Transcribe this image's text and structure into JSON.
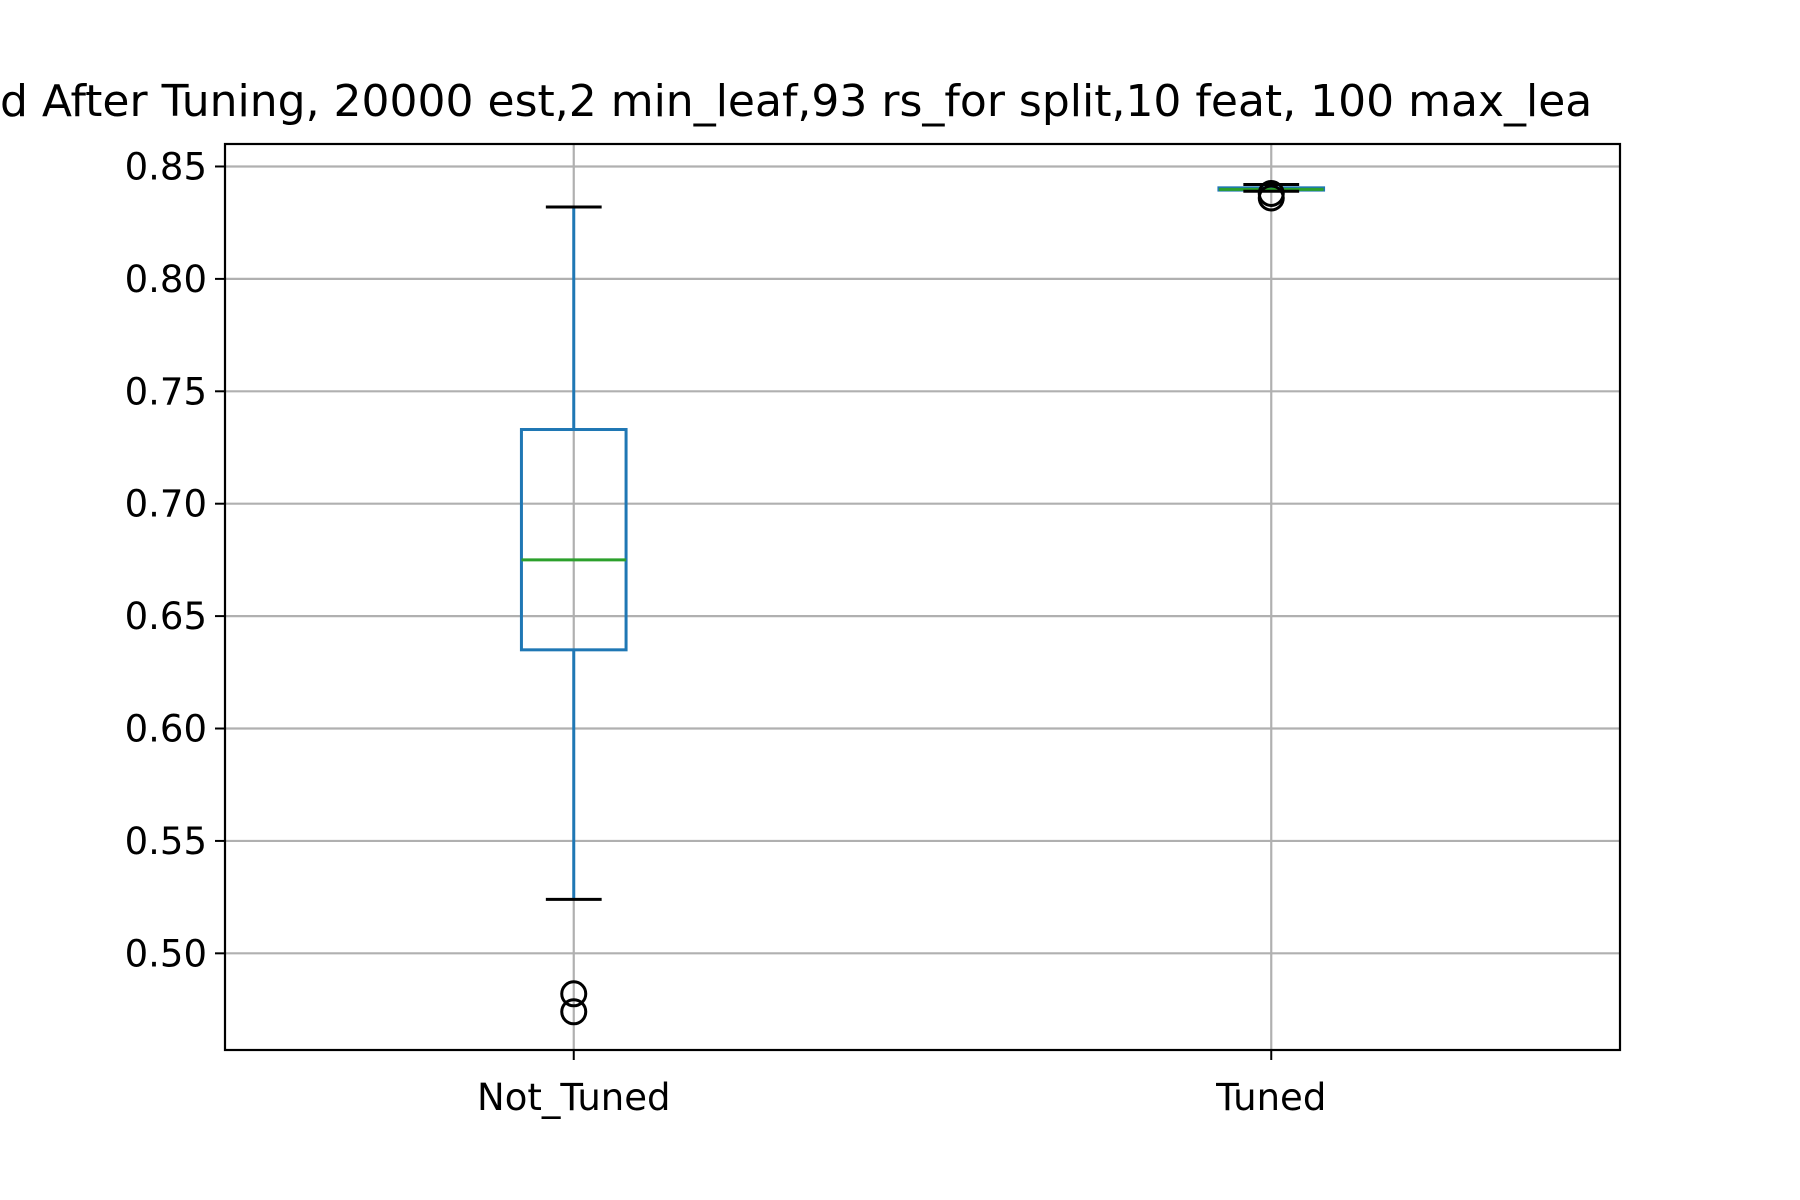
{
  "chart_data": {
    "type": "box",
    "title": "d After Tuning, 20000 est,2 min_leaf,93 rs_for split,10 feat, 100 max_lea",
    "xlabel": "",
    "ylabel": "",
    "categories": [
      "Not_Tuned",
      "Tuned"
    ],
    "ylim": [
      0.457,
      0.86
    ],
    "yticks": [
      0.5,
      0.55,
      0.6,
      0.65,
      0.7,
      0.75,
      0.8,
      0.85
    ],
    "ytick_labels": [
      "0.50",
      "0.55",
      "0.60",
      "0.65",
      "0.70",
      "0.75",
      "0.80",
      "0.85"
    ],
    "grid": true,
    "boxes": [
      {
        "category": "Not_Tuned",
        "whisker_low": 0.524,
        "q1": 0.635,
        "median": 0.675,
        "q3": 0.733,
        "whisker_high": 0.832,
        "outliers": [
          0.474,
          0.482
        ]
      },
      {
        "category": "Tuned",
        "whisker_low": 0.839,
        "q1": 0.8395,
        "median": 0.8398,
        "q3": 0.8405,
        "whisker_high": 0.842,
        "outliers": [
          0.836,
          0.838
        ]
      }
    ],
    "colors": {
      "box": "#1f77b4",
      "median": "#2ca02c",
      "cap": "#000000",
      "grid": "#b0b0b0",
      "flier": "#000000"
    }
  }
}
